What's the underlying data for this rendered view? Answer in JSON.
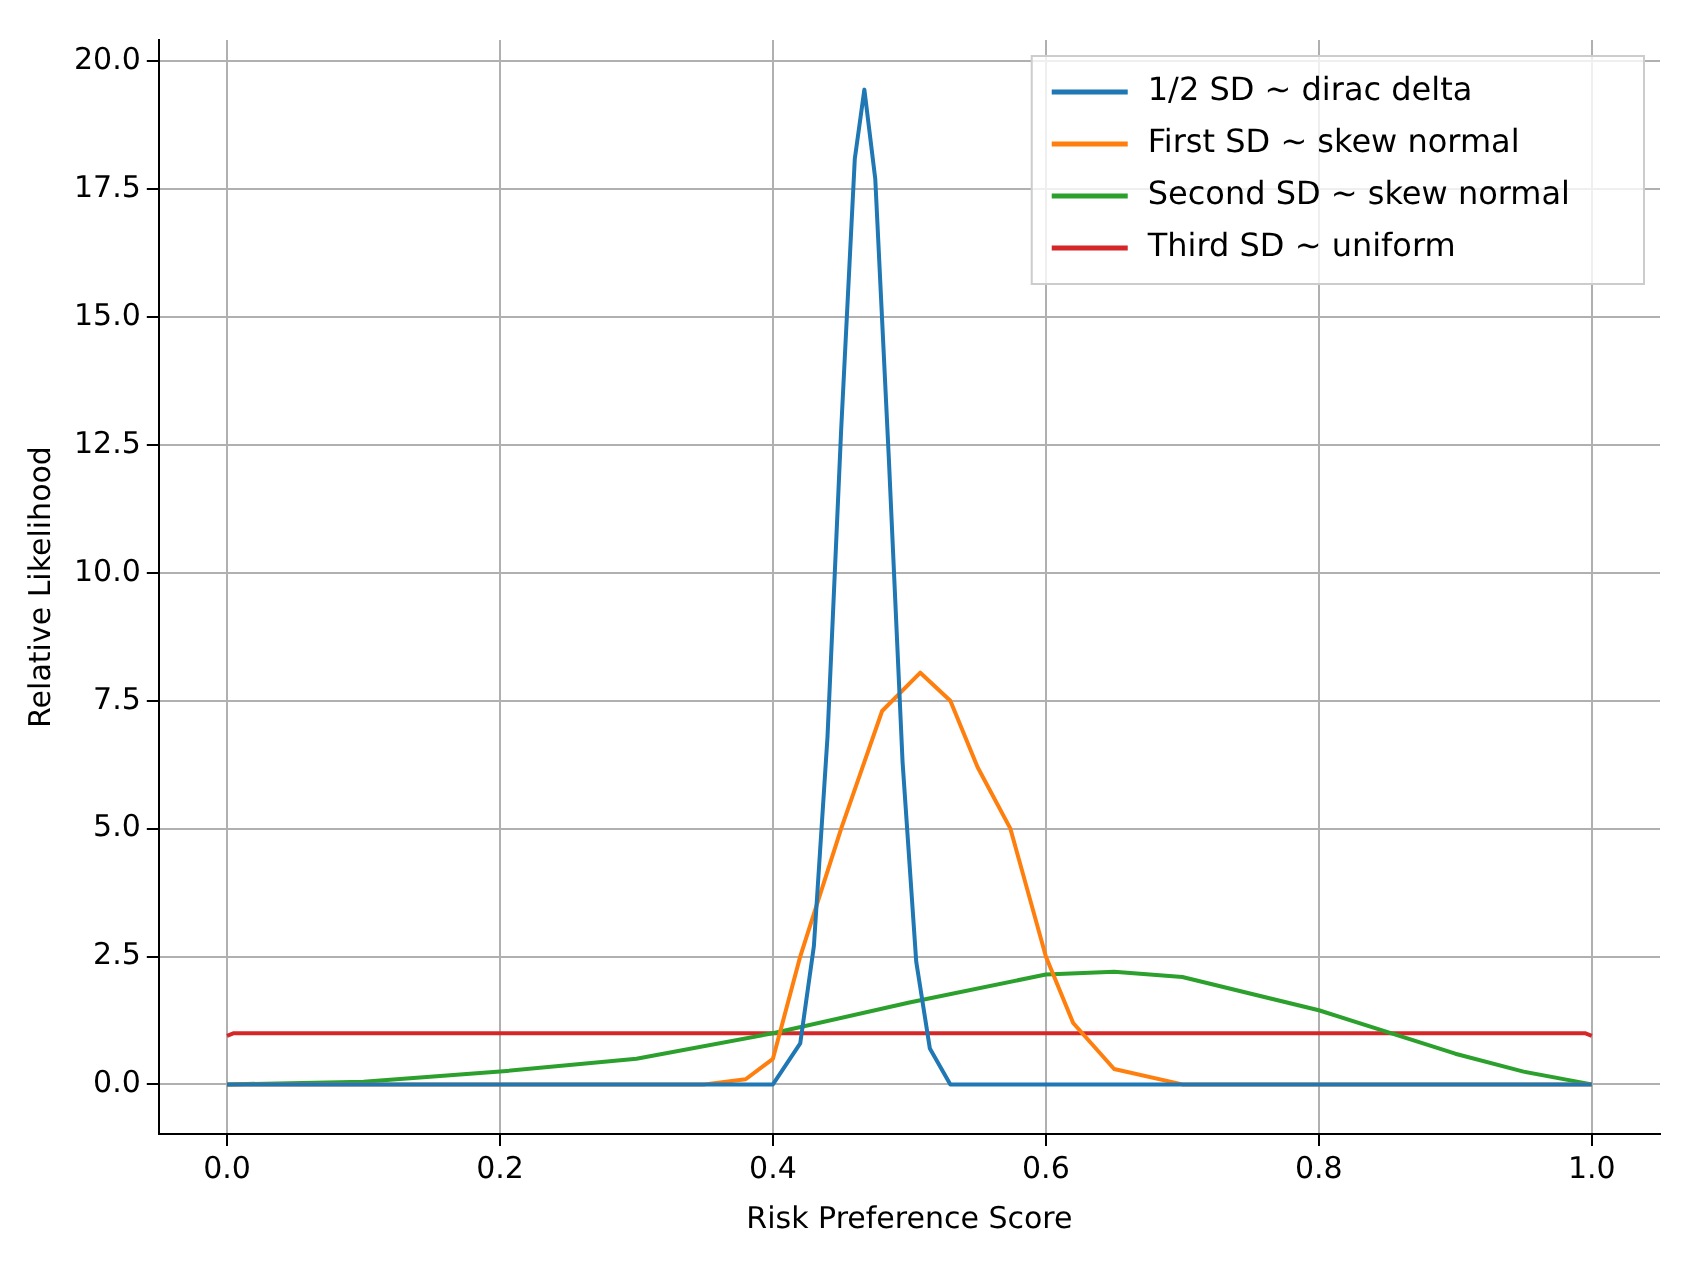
{
  "chart_data": {
    "type": "line",
    "xlabel": "Risk Preference Score",
    "ylabel": "Relative Likelihood",
    "xlim": [
      -0.05,
      1.05
    ],
    "ylim": [
      -0.97,
      20.42
    ],
    "xticks": [
      {
        "value": 0,
        "label": "0.0"
      },
      0.2,
      0.4,
      0.6,
      0.8,
      {
        "value": 1,
        "label": "1.0"
      }
    ],
    "yticks": [
      {
        "value": 0,
        "label": "0.0"
      },
      2.5,
      {
        "value": 5,
        "label": "5.0"
      },
      7.5,
      {
        "value": 10,
        "label": "10.0"
      },
      12.5,
      {
        "value": 15,
        "label": "15.0"
      },
      17.5,
      {
        "value": 20,
        "label": "20.0"
      }
    ],
    "grid": true,
    "legend": "top right",
    "marker": "none",
    "line_style": "solid",
    "series": [
      {
        "name": "1/2 SD ~ dirac delta",
        "color": "#1f77b4",
        "x": [
          0,
          0.4,
          0.42,
          0.43,
          0.44,
          0.45,
          0.46,
          0.467,
          0.475,
          0.485,
          0.495,
          0.505,
          0.515,
          0.53,
          1
        ],
        "values": [
          0,
          0,
          0.8,
          2.7,
          6.8,
          12.8,
          18.1,
          19.45,
          17.7,
          12.2,
          6.3,
          2.4,
          0.7,
          0,
          0
        ]
      },
      {
        "name": "First SD ~ skew normal",
        "color": "#ff7f0e",
        "x": [
          0,
          0.35,
          0.38,
          0.4,
          0.42,
          0.45,
          0.48,
          0.508,
          0.53,
          0.55,
          0.574,
          0.6,
          0.62,
          0.65,
          0.7,
          1
        ],
        "values": [
          0,
          0,
          0.1,
          0.5,
          2.5,
          5.0,
          7.3,
          8.05,
          7.5,
          6.2,
          5.0,
          2.5,
          1.2,
          0.3,
          0,
          0
        ]
      },
      {
        "name": "Second SD ~ skew normal",
        "color": "#2ca02c",
        "x": [
          0,
          0.1,
          0.2,
          0.3,
          0.4,
          0.5,
          0.6,
          0.65,
          0.7,
          0.8,
          0.9,
          0.95,
          1
        ],
        "values": [
          0,
          0.05,
          0.25,
          0.5,
          1.0,
          1.6,
          2.15,
          2.2,
          2.1,
          1.45,
          0.6,
          0.25,
          0
        ]
      },
      {
        "name": "Third SD ~ uniform",
        "color": "#d62728",
        "x": [
          0,
          0.005,
          0.995,
          1
        ],
        "values": [
          0.95,
          1.0,
          1.0,
          0.95
        ]
      }
    ]
  }
}
